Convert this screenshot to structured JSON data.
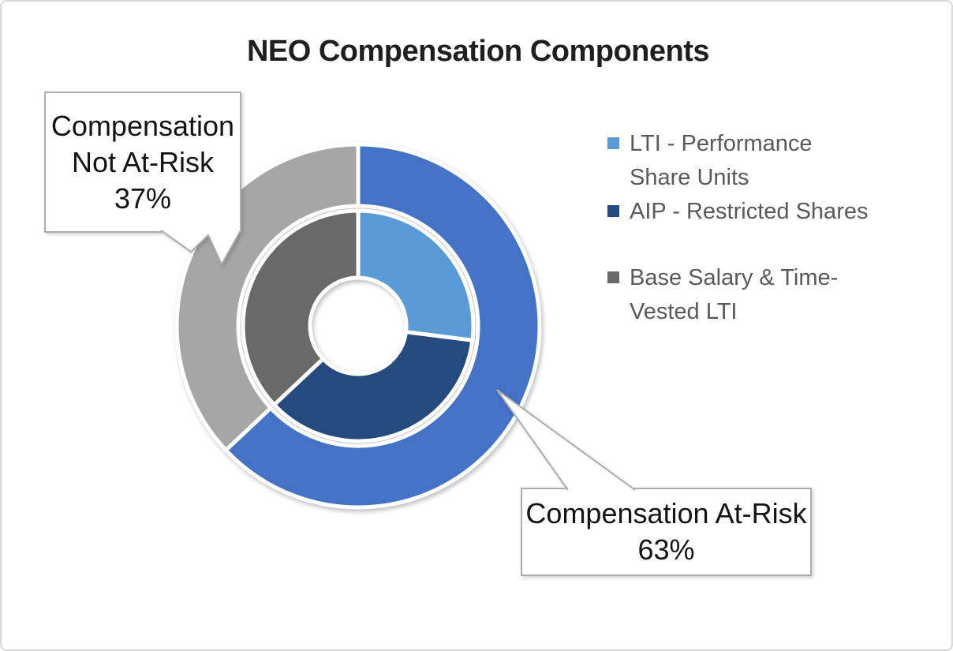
{
  "page": {
    "background": "#ffffff",
    "border_color": "#D9D9D9"
  },
  "chart": {
    "title": "NEO Compensation Components",
    "title_color": "#1f1f1f"
  },
  "chart_data": {
    "type": "donut",
    "title": "NEO Compensation Components",
    "units": "percent of total compensation",
    "start_angle_deg": 0,
    "direction": "clockwise",
    "legend_position": "right",
    "rings": [
      {
        "name": "outer",
        "series": [
          {
            "label": "Compensation At-Risk",
            "value": 63,
            "color": "#4472C4"
          },
          {
            "label": "Compensation Not At-Risk",
            "value": 37,
            "color": "#A6A6A6"
          }
        ]
      },
      {
        "name": "inner",
        "series": [
          {
            "label": "LTI - Performance Share Units",
            "value": 27,
            "color": "#5B9BD5"
          },
          {
            "label": "AIP - Restricted Shares",
            "value": 36,
            "color": "#264A7D"
          },
          {
            "label": "Base Salary & Time-Vested LTI",
            "value": 37,
            "color": "#696969"
          }
        ]
      }
    ]
  },
  "legend": {
    "text_color": "#595959",
    "items": [
      {
        "label": "LTI - Performance Share Units",
        "marker_color": "#5B9BD5",
        "lines": [
          "LTI - Performance",
          "Share Units"
        ]
      },
      {
        "label": "AIP - Restricted Shares",
        "marker_color": "#264A7D",
        "lines": [
          "AIP - Restricted Shares"
        ]
      },
      {
        "label": "Base Salary & Time-Vested LTI",
        "marker_color": "#696969",
        "lines": [
          "Base Salary & Time-",
          "Vested LTI"
        ]
      }
    ]
  },
  "callouts": {
    "not_at_risk": {
      "label": "Compensation Not At-Risk",
      "value": "37%",
      "border_color": "#ADADAD",
      "fill": "#ffffff"
    },
    "at_risk": {
      "label": "Compensation At-Risk",
      "value": "63%",
      "border_color": "#ADADAD",
      "fill": "#ffffff"
    }
  }
}
